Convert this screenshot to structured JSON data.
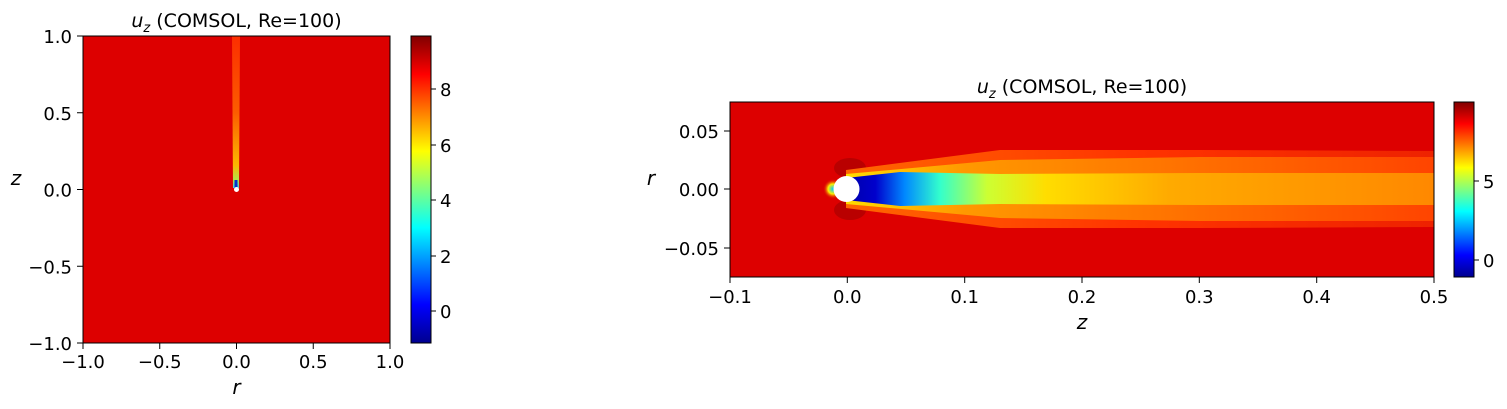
{
  "chart_data": [
    {
      "type": "heatmap",
      "title_var": "u",
      "title_sub": "z",
      "title_rest": " (COMSOL, Re=100)",
      "xlabel": "r",
      "ylabel": "z",
      "xlim": [
        -1.0,
        1.0
      ],
      "ylim": [
        -1.0,
        1.0
      ],
      "xticks": [
        "−1.0",
        "−0.5",
        "0.0",
        "0.5",
        "1.0"
      ],
      "yticks": [
        "1.0",
        "0.5",
        "0.0",
        "−0.5",
        "−1.0"
      ],
      "colorbar": {
        "range": [
          -1.2,
          9.8
        ],
        "ticks": [
          "8",
          "6",
          "4",
          "2",
          "0"
        ],
        "colormap": "jet"
      },
      "background_value": 9.5,
      "wake": "thin vertical wake above obstacle at (0,0), values ~6–8"
    },
    {
      "type": "heatmap",
      "title_var": "u",
      "title_sub": "z",
      "title_rest": " (COMSOL, Re=100)",
      "xlabel": "z",
      "ylabel": "r",
      "xlim": [
        -0.1,
        0.5
      ],
      "ylim": [
        -0.075,
        0.075
      ],
      "xticks": [
        "−0.1",
        "0.0",
        "0.1",
        "0.2",
        "0.3",
        "0.4",
        "0.5"
      ],
      "yticks": [
        "0.05",
        "0.00",
        "−0.05"
      ],
      "colorbar": {
        "range": [
          -1.2,
          9.8
        ],
        "ticks": [
          "5",
          "0"
        ],
        "colormap": "jet"
      },
      "background_value": 9.5,
      "obstacle": "white disk at z=0, r=0",
      "wake": "low-velocity wake (~-1 to 3) behind disk recovering to ~7 downstream"
    }
  ],
  "colors": {
    "field": "#dd0000",
    "obstacle": "#ffffff"
  }
}
